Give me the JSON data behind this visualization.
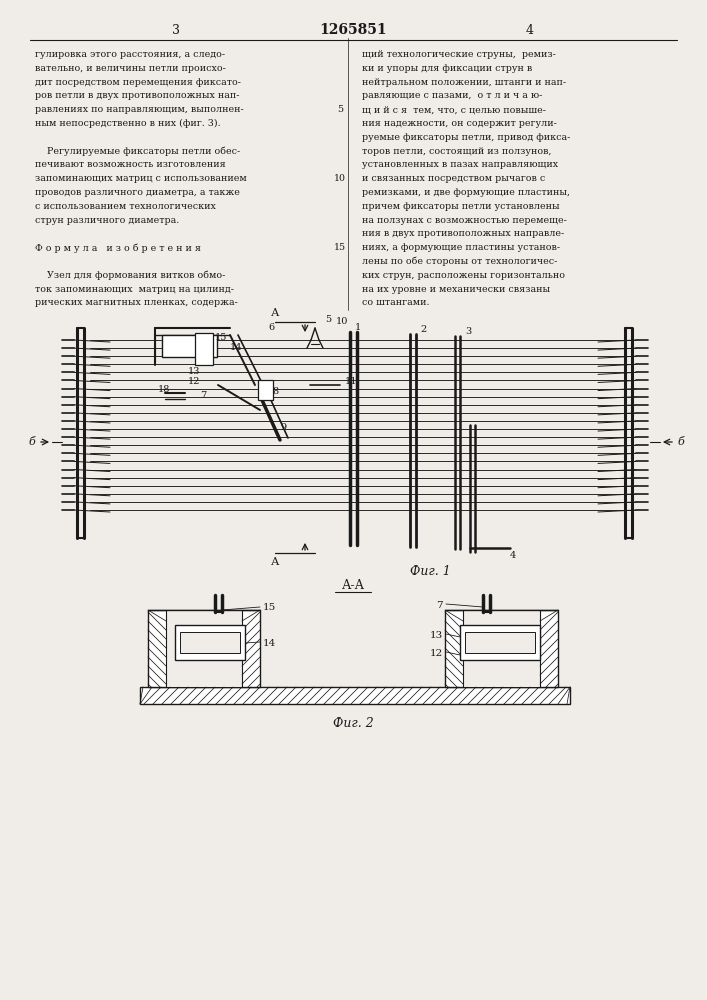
{
  "page_width": 7.07,
  "page_height": 10.0,
  "bg_color": "#f0ede8",
  "text_color": "#1a1a1a",
  "line_color": "#1a1a1a",
  "page_num_left": "3",
  "page_num_center": "1265851",
  "page_num_right": "4",
  "col1_text": [
    "гулировка этого расстояния, а следо-",
    "вательно, и величины петли происхо-",
    "дит посредством перемещения фиксато-",
    "ров петли в двух противоположных нап-",
    "равлениях по направляющим, выполнен-",
    "ным непосредственно в них (фиг. 3).",
    "",
    "    Регулируемые фиксаторы петли обес-",
    "печивают возможность изготовления",
    "запоминающих матриц с использованием",
    "проводов различного диаметра, а также",
    "с использованием технологических",
    "струн различного диаметра.",
    "",
    "Ф о р м у л а   и з о б р е т е н и я",
    "",
    "    Узел для формования витков обмо-",
    "ток запоминающих  матриц на цилинд-",
    "рических магнитных пленках, содержа-"
  ],
  "col2_text": [
    "щий технологические струны,  ремиз-",
    "ки и упоры для фиксации струн в",
    "нейтральном положении, штанги и нап-",
    "равляющие с пазами,  о т л и ч а ю-",
    "щ и й с я  тем, что, с целью повыше-",
    "ния надежности, он содержит регули-",
    "руемые фиксаторы петли, привод фикса-",
    "торов петли, состоящий из ползунов,",
    "установленных в пазах направляющих",
    "и связанных посредством рычагов с",
    "ремизками, и две формующие пластины,",
    "причем фиксаторы петли установлены",
    "на ползунах с возможностью перемеще-",
    "ния в двух противоположных направле-",
    "ниях, а формующие пластины установ-",
    "лены по обе стороны от технологичес-",
    "ких струн, расположены горизонтально",
    "на их уровне и механически связаны",
    "со штангами."
  ],
  "fig1_label": "Фиг. 1",
  "fig2_label": "Фиг. 2",
  "fig2_section_label": "А-А"
}
